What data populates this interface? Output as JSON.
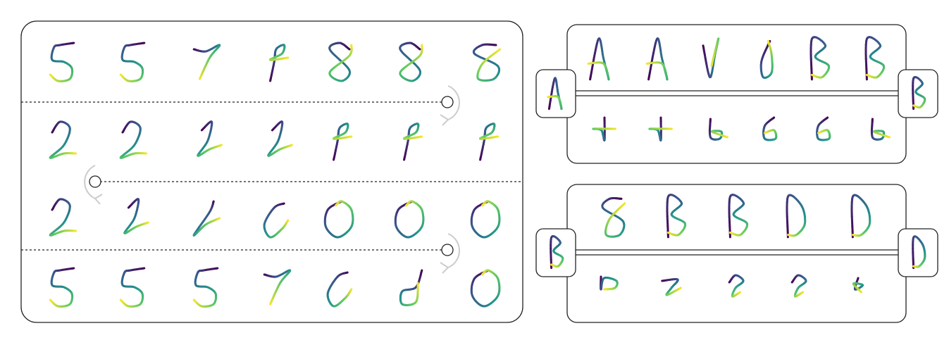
{
  "palette": {
    "viridis": [
      "#440154",
      "#3b528b",
      "#21908d",
      "#5dc963",
      "#fde725"
    ],
    "panel_border": "#222222",
    "divider": "#222222",
    "arrow_gray": "#cccccc"
  },
  "glyph_types": [
    "five",
    "two",
    "one",
    "seven",
    "p",
    "eight",
    "s",
    "zero",
    "c",
    "slash",
    "A",
    "B",
    "D",
    "plus",
    "b-small",
    "six",
    "d-small",
    "v",
    "loop",
    "hook",
    "check",
    "question",
    "scribble"
  ],
  "left_panel": {
    "rows": [
      {
        "glyphs": [
          "five",
          "five",
          "seven",
          "p",
          "eight",
          "eight",
          "s"
        ]
      },
      {
        "glyphs": [
          "two",
          "two",
          "one",
          "one",
          "p",
          "p",
          "p"
        ]
      },
      {
        "glyphs": [
          "two",
          "one",
          "slash",
          "c",
          "zero",
          "zero",
          "zero"
        ]
      },
      {
        "glyphs": [
          "five",
          "five",
          "five",
          "seven",
          "c",
          "d-small",
          "zero"
        ]
      }
    ],
    "turn_markers": [
      {
        "between_rows": "1-2",
        "side": "right"
      },
      {
        "between_rows": "2-3",
        "side": "left"
      },
      {
        "between_rows": "3-4",
        "side": "right"
      }
    ]
  },
  "right_panels": [
    {
      "left_label": "A",
      "right_label": "B",
      "top_row": [
        "A",
        "A",
        "v",
        "loop",
        "B",
        "B"
      ],
      "bottom_row": [
        "plus",
        "plus",
        "b-small",
        "six",
        "six",
        "b-small"
      ]
    },
    {
      "left_label": "B",
      "right_label": "D",
      "top_row": [
        "s",
        "B",
        "B",
        "D",
        "D"
      ],
      "bottom_row": [
        "hook",
        "check",
        "question",
        "question",
        "scribble"
      ]
    }
  ]
}
